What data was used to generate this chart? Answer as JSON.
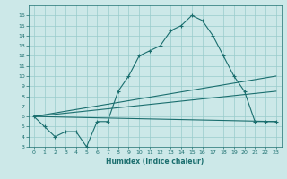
{
  "xlabel": "Humidex (Indice chaleur)",
  "bg_color": "#cce8e8",
  "grid_color": "#99cccc",
  "line_color": "#1a6e6e",
  "xlim": [
    -0.5,
    23.5
  ],
  "ylim": [
    3,
    17
  ],
  "xticks": [
    0,
    1,
    2,
    3,
    4,
    5,
    6,
    7,
    8,
    9,
    10,
    11,
    12,
    13,
    14,
    15,
    16,
    17,
    18,
    19,
    20,
    21,
    22,
    23
  ],
  "yticks": [
    3,
    4,
    5,
    6,
    7,
    8,
    9,
    10,
    11,
    12,
    13,
    14,
    15,
    16
  ],
  "line1_x": [
    0,
    1,
    2,
    3,
    4,
    5,
    6,
    7,
    8,
    9,
    10,
    11,
    12,
    13,
    14,
    15,
    16,
    17,
    18,
    19,
    20,
    21,
    22,
    23
  ],
  "line1_y": [
    6,
    5,
    4,
    4.5,
    4.5,
    3,
    5.5,
    5.5,
    8.5,
    10,
    12,
    12.5,
    13,
    14.5,
    15,
    16,
    15.5,
    14,
    12,
    10,
    8.5,
    5.5,
    5.5,
    5.5
  ],
  "line2_x": [
    0,
    23
  ],
  "line2_y": [
    6,
    5.5
  ],
  "line3_x": [
    0,
    23
  ],
  "line3_y": [
    6,
    10.0
  ],
  "line4_x": [
    0,
    23
  ],
  "line4_y": [
    6,
    8.5
  ]
}
